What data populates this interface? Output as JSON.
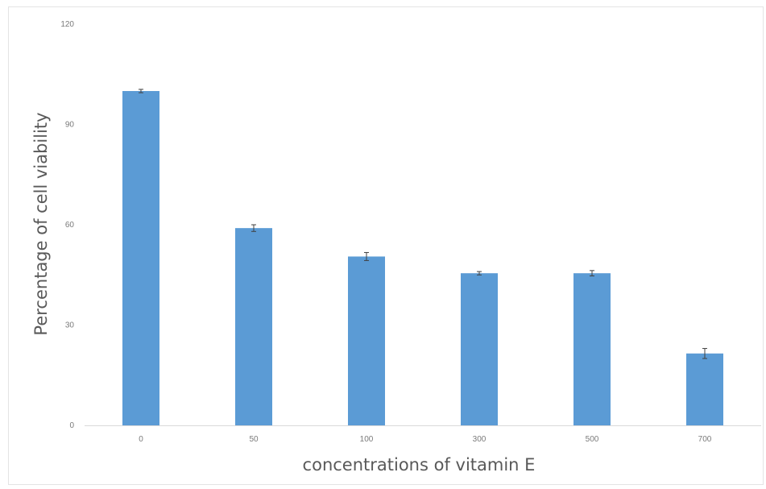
{
  "chart_data": {
    "type": "bar",
    "title": "",
    "xlabel": "concentrations of vitamin E",
    "ylabel": "Percentage of cell viability",
    "categories": [
      "0",
      "50",
      "100",
      "300",
      "500",
      "700"
    ],
    "series": [
      {
        "values": [
          100,
          59,
          50.5,
          45.5,
          45.5,
          21.5
        ],
        "errors": [
          0.5,
          1,
          1.2,
          0.5,
          0.8,
          1.5
        ]
      }
    ],
    "ylim": [
      0,
      120
    ],
    "yticks": [
      0,
      30,
      60,
      90,
      120
    ],
    "grid": false,
    "legend": "none",
    "bar_color": "#5b9bd5",
    "error_color": "#404040"
  }
}
